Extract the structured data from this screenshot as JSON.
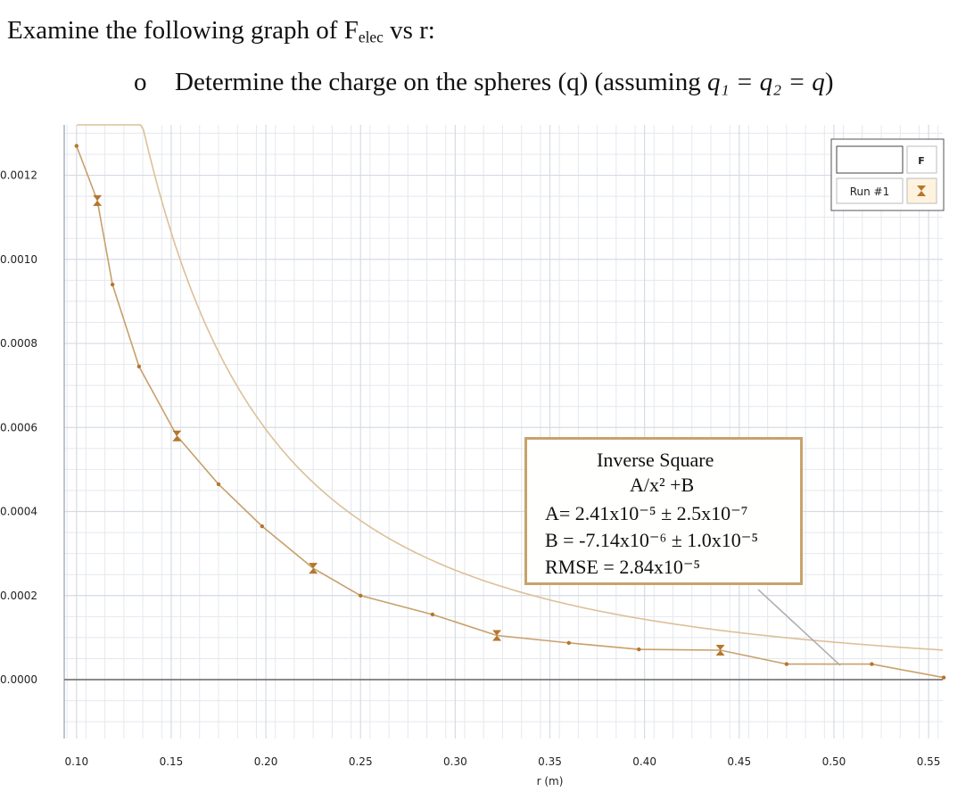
{
  "question": {
    "line1_text": "Examine the following graph of F",
    "line1_sub": "elec",
    "line1_tail": " vs r:",
    "bullet": "o",
    "line2_text": "Determine the charge on the spheres (q)  (assuming ",
    "line2_math": "q₁ = q₂ = q",
    "line2_tail": ")"
  },
  "legend": {
    "header": "F",
    "run_label": "Run #1",
    "run_icon": "hourglass-marker-icon"
  },
  "fit_box": {
    "title": "Inverse Square",
    "equation": "A/x² +B",
    "a_line": "A= 2.41x10⁻⁵ ± 2.5x10⁻⁷",
    "b_line": "B = -7.14x10⁻⁶ ± 1.0x10⁻⁵",
    "rmse_line": "RMSE = 2.84x10⁻⁵"
  },
  "chart_data": {
    "type": "scatter",
    "xlabel": "r (m)",
    "ylabel": "",
    "xlim": [
      0.0935,
      0.5575
    ],
    "ylim": [
      -0.00014,
      0.00132
    ],
    "x_ticks": [
      "0.10",
      "0.15",
      "0.20",
      "0.25",
      "0.30",
      "0.35",
      "0.40",
      "0.45",
      "0.50",
      "0.55"
    ],
    "y_ticks": [
      "0.0000",
      "0.0002",
      "0.0004",
      "0.0006",
      "0.0008",
      "0.0010",
      "0.0012"
    ],
    "grid": true,
    "legend_position": "top-right",
    "colors": {
      "series": "#c8a06a",
      "marker": "#b5762e",
      "fit": "#dcc098",
      "grid": "#e4e8ee",
      "zero_line": "#666666"
    },
    "series": [
      {
        "name": "Run #1",
        "x": [
          0.1,
          0.111,
          0.119,
          0.133,
          0.153,
          0.175,
          0.198,
          0.225,
          0.25,
          0.288,
          0.322,
          0.36,
          0.397,
          0.44,
          0.475,
          0.52,
          0.558
        ],
        "y": [
          0.00127,
          0.00114,
          0.00094,
          0.000745,
          0.00058,
          0.000465,
          0.000365,
          0.000265,
          0.0002,
          0.000155,
          0.000105,
          8.75e-05,
          7.2e-05,
          7e-05,
          3.7e-05,
          3.7e-05,
          5e-06
        ],
        "error_bar_points": [
          1,
          4,
          7,
          10,
          13
        ]
      }
    ],
    "fit": {
      "model": "A/x^2 + B",
      "A": 2.41e-05,
      "B": -7.14e-06
    }
  }
}
